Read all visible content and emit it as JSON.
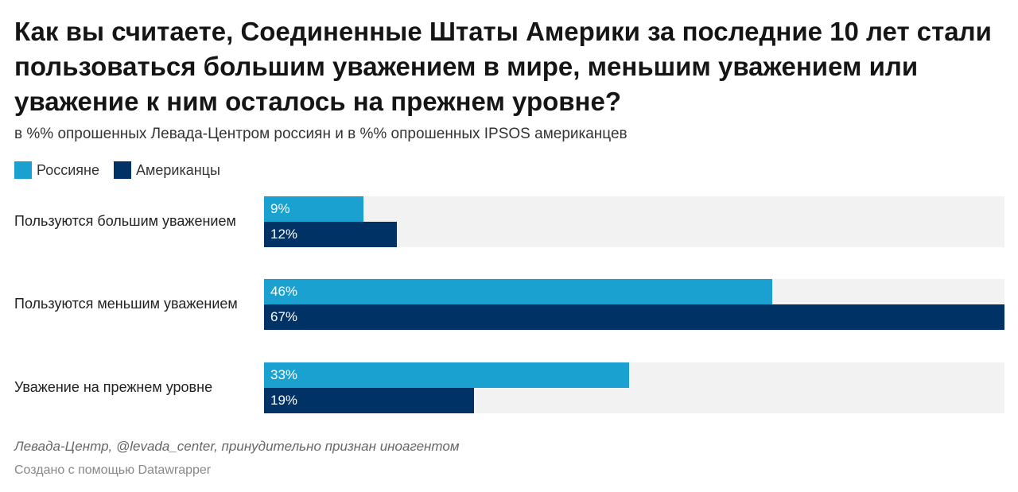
{
  "title": "Как вы считаете, Соединенные Штаты Америки за последние 10 лет стали пользоваться большим уважением в мире, меньшим уважением или уважение к ним осталось на прежнем уровне?",
  "subtitle": "в %% опрошенных Левада-Центром россиян и в %% опрошенных IPSOS американцев",
  "legend": [
    {
      "label": "Россияне",
      "color": "#1ba1cf"
    },
    {
      "label": "Американцы",
      "color": "#003265"
    }
  ],
  "source": "Левада-Центр, @levada_center, принудительно признан иноагентом",
  "credit": "Создано с помощью Datawrapper",
  "chart_data": {
    "type": "bar",
    "orientation": "horizontal",
    "categories": [
      "Пользуются большим уважением",
      "Пользуются меньшим уважением",
      "Уважение на прежнем уровне"
    ],
    "series": [
      {
        "name": "Россияне",
        "values": [
          9,
          46,
          33
        ],
        "labels": [
          "9%",
          "46%",
          "33%"
        ],
        "color": "#1ba1cf"
      },
      {
        "name": "Американцы",
        "values": [
          12,
          67,
          19
        ],
        "labels": [
          "12%",
          "67%",
          "19%"
        ],
        "color": "#003265"
      }
    ],
    "xlim": [
      0,
      67
    ],
    "grid": false,
    "legend_position": "top-left"
  }
}
